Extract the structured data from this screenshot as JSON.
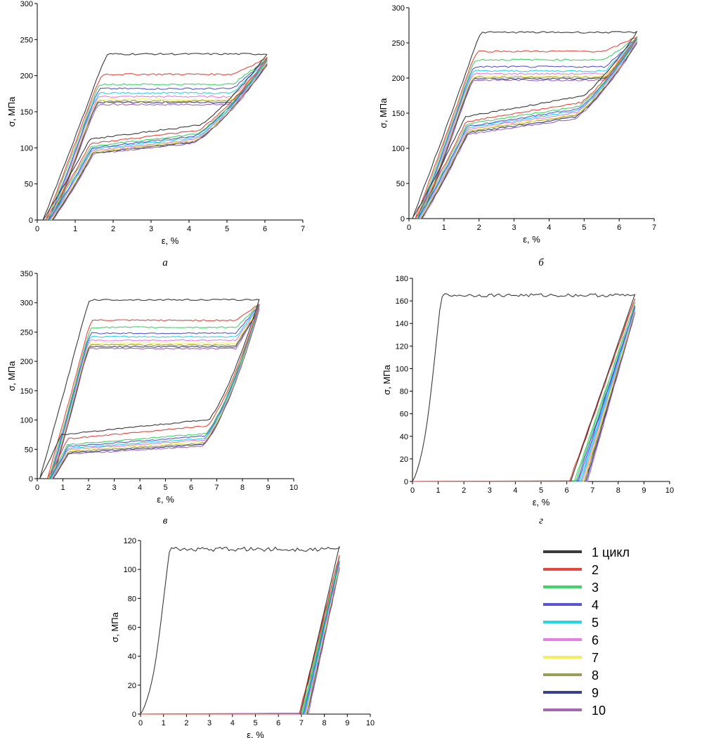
{
  "series_colors": [
    "#3a3a3a",
    "#e8473d",
    "#3fd36a",
    "#5a55d6",
    "#25d6e6",
    "#e77ee6",
    "#f4ef5e",
    "#9a9d55",
    "#3a3f8e",
    "#a568b0"
  ],
  "legend": {
    "entries": [
      "1 цикл",
      "2",
      "3",
      "4",
      "5",
      "6",
      "7",
      "8",
      "9",
      "10"
    ]
  },
  "chart_data": [
    {
      "type": "line",
      "caption": "а",
      "xlabel": "ε, %",
      "ylabel": "σ, МПа",
      "xlim": [
        0,
        7
      ],
      "ylim": [
        0,
        300
      ],
      "xticks": [
        0,
        1,
        2,
        3,
        4,
        5,
        6,
        7
      ],
      "yticks": [
        0,
        50,
        100,
        150,
        200,
        250,
        300
      ],
      "max_strain": 6.05,
      "series": [
        {
          "residual": 0.15,
          "upper_plateau": 230,
          "lower_plateau": 112
        },
        {
          "residual": 0.22,
          "upper_plateau": 202,
          "lower_plateau": 106
        },
        {
          "residual": 0.26,
          "upper_plateau": 188,
          "lower_plateau": 102
        },
        {
          "residual": 0.3,
          "upper_plateau": 182,
          "lower_plateau": 100
        },
        {
          "residual": 0.32,
          "upper_plateau": 176,
          "lower_plateau": 98
        },
        {
          "residual": 0.34,
          "upper_plateau": 171,
          "lower_plateau": 96
        },
        {
          "residual": 0.36,
          "upper_plateau": 167,
          "lower_plateau": 95
        },
        {
          "residual": 0.38,
          "upper_plateau": 165,
          "lower_plateau": 94
        },
        {
          "residual": 0.4,
          "upper_plateau": 163,
          "lower_plateau": 93
        },
        {
          "residual": 0.42,
          "upper_plateau": 160,
          "lower_plateau": 92
        }
      ]
    },
    {
      "type": "line",
      "caption": "б",
      "xlabel": "ε, %",
      "ylabel": "σ, МПа",
      "xlim": [
        0,
        7
      ],
      "ylim": [
        0,
        300
      ],
      "xticks": [
        0,
        1,
        2,
        3,
        4,
        5,
        6,
        7
      ],
      "yticks": [
        0,
        50,
        100,
        150,
        200,
        250,
        300
      ],
      "max_strain": 6.5,
      "series": [
        {
          "residual": 0.1,
          "upper_plateau": 265,
          "lower_plateau": 145
        },
        {
          "residual": 0.18,
          "upper_plateau": 238,
          "lower_plateau": 138
        },
        {
          "residual": 0.22,
          "upper_plateau": 226,
          "lower_plateau": 134
        },
        {
          "residual": 0.26,
          "upper_plateau": 216,
          "lower_plateau": 131
        },
        {
          "residual": 0.28,
          "upper_plateau": 210,
          "lower_plateau": 129
        },
        {
          "residual": 0.3,
          "upper_plateau": 206,
          "lower_plateau": 127
        },
        {
          "residual": 0.32,
          "upper_plateau": 203,
          "lower_plateau": 125
        },
        {
          "residual": 0.34,
          "upper_plateau": 201,
          "lower_plateau": 124
        },
        {
          "residual": 0.36,
          "upper_plateau": 199,
          "lower_plateau": 122
        },
        {
          "residual": 0.38,
          "upper_plateau": 197,
          "lower_plateau": 120
        }
      ]
    },
    {
      "type": "line",
      "caption": "в",
      "xlabel": "ε, %",
      "ylabel": "σ, МПа",
      "xlim": [
        0,
        10
      ],
      "ylim": [
        0,
        350
      ],
      "xticks": [
        0,
        1,
        2,
        3,
        4,
        5,
        6,
        7,
        8,
        9,
        10
      ],
      "yticks": [
        0,
        50,
        100,
        150,
        200,
        250,
        300,
        350
      ],
      "max_strain": 8.65,
      "series": [
        {
          "residual": 0.1,
          "upper_plateau": 305,
          "lower_plateau": 75
        },
        {
          "residual": 0.4,
          "upper_plateau": 270,
          "lower_plateau": 68
        },
        {
          "residual": 0.46,
          "upper_plateau": 258,
          "lower_plateau": 58
        },
        {
          "residual": 0.5,
          "upper_plateau": 248,
          "lower_plateau": 55
        },
        {
          "residual": 0.52,
          "upper_plateau": 242,
          "lower_plateau": 52
        },
        {
          "residual": 0.54,
          "upper_plateau": 236,
          "lower_plateau": 50
        },
        {
          "residual": 0.56,
          "upper_plateau": 231,
          "lower_plateau": 48
        },
        {
          "residual": 0.58,
          "upper_plateau": 228,
          "lower_plateau": 46
        },
        {
          "residual": 0.6,
          "upper_plateau": 225,
          "lower_plateau": 44
        },
        {
          "residual": 0.62,
          "upper_plateau": 222,
          "lower_plateau": 42
        }
      ]
    },
    {
      "type": "line",
      "caption": "г",
      "xlabel": "ε, %",
      "ylabel": "σ, МПа",
      "xlim": [
        0,
        10
      ],
      "ylim": [
        0,
        180
      ],
      "xticks": [
        0,
        1,
        2,
        3,
        4,
        5,
        6,
        7,
        8,
        9,
        10
      ],
      "yticks": [
        0,
        20,
        40,
        60,
        80,
        100,
        120,
        140,
        160,
        180
      ],
      "first_cycle": {
        "yield_strain": 1.1,
        "plateau": 165,
        "end_strain": 8.65,
        "end_stress": 166
      },
      "later_cycles_start": [
        6.1,
        6.3,
        6.4,
        6.5,
        6.55,
        6.6,
        6.65,
        6.7,
        6.75
      ],
      "later_cycles_peak": [
        162,
        158,
        155,
        154,
        153,
        152,
        151,
        150,
        149
      ]
    },
    {
      "type": "line",
      "caption": "",
      "xlabel": "ε, %",
      "ylabel": "σ, МПа",
      "xlim": [
        0,
        10
      ],
      "ylim": [
        0,
        120
      ],
      "xticks": [
        0,
        1,
        2,
        3,
        4,
        5,
        6,
        7,
        8,
        9,
        10
      ],
      "yticks": [
        0,
        20,
        40,
        60,
        80,
        100,
        120
      ],
      "first_cycle": {
        "yield_strain": 1.25,
        "plateau": 114,
        "end_strain": 8.65,
        "end_stress": 116
      },
      "later_cycles_start": [
        6.9,
        7.0,
        7.05,
        7.1,
        7.12,
        7.15,
        7.18,
        7.2,
        7.25
      ],
      "later_cycles_peak": [
        110,
        108,
        106,
        105,
        104,
        103,
        102,
        101,
        100
      ]
    }
  ]
}
